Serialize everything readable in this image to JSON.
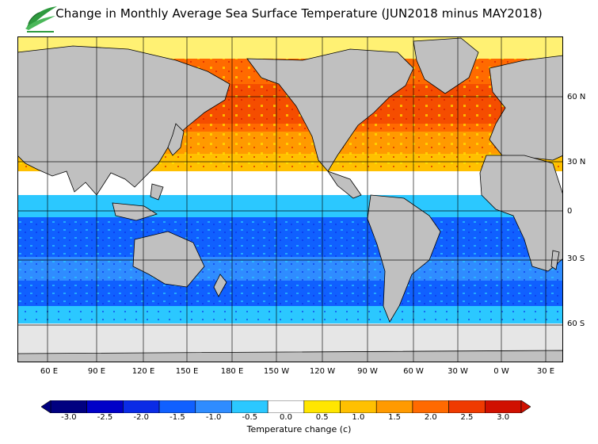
{
  "title": "Change in Monthly Average Sea Surface Temperature (JUN2018 minus MAY2018)",
  "map": {
    "lat_labels": [
      "60 N",
      "30 N",
      "0",
      "30 S",
      "60 S"
    ],
    "lon_labels": [
      "60 E",
      "90 E",
      "120 E",
      "150 E",
      "180 E",
      "150 W",
      "120 W",
      "90 W",
      "60 W",
      "30 W",
      "0 W",
      "30 E"
    ]
  },
  "legend": {
    "title": "Temperature change  (c)",
    "ticks": [
      "-3.0",
      "-2.5",
      "-2.0",
      "-1.5",
      "-1.0",
      "-0.5",
      "0.0",
      "0.5",
      "1.0",
      "1.5",
      "2.0",
      "2.5",
      "3.0"
    ],
    "colors": [
      "#000080",
      "#0000c8",
      "#0a2be6",
      "#1060ff",
      "#2f8cff",
      "#2bc8ff",
      "#ffffff",
      "#ffe600",
      "#ffc000",
      "#ff9a00",
      "#ff6a00",
      "#ef3a00",
      "#d01000"
    ],
    "missing_color": "#e6e6e6",
    "land_color": "#c0c0c0"
  }
}
